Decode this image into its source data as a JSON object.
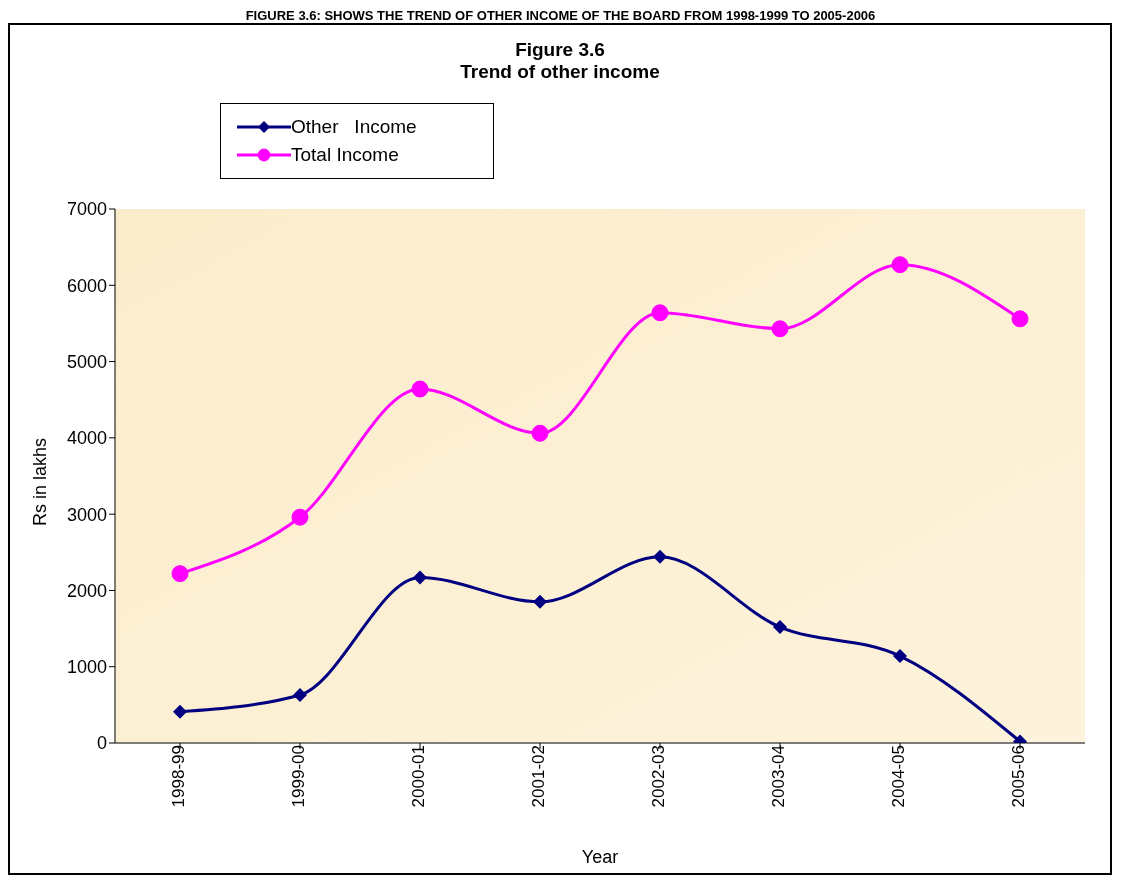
{
  "chart_data": {
    "type": "line",
    "title": "Figure 3.6\nTrend of other income",
    "annotations": [
      "FIGURE 3.6: SHOWS THE TREND OF OTHER INCOME OF THE BOARD FROM 1998-1999 TO 2005-2006"
    ],
    "xlabel": "Year",
    "ylabel": "Rs in lakhs",
    "categories": [
      "1998-99",
      "1999-00",
      "2000-01",
      "2001-02",
      "2002-03",
      "2003-04",
      "2004-05",
      "2005-06"
    ],
    "series": [
      {
        "name": "Other   Income",
        "color": "#000080",
        "marker": "diamond",
        "values": [
          410,
          630,
          2170,
          1850,
          2440,
          1520,
          1140,
          20
        ]
      },
      {
        "name": "Total Income",
        "color": "#ff00ff",
        "marker": "circle",
        "values": [
          2220,
          2960,
          4640,
          4060,
          5640,
          5430,
          6270,
          5560
        ]
      }
    ],
    "ylim": [
      0,
      7000
    ],
    "yticks": [
      0,
      1000,
      2000,
      3000,
      4000,
      5000,
      6000,
      7000
    ],
    "grid": false,
    "legend": "top left"
  }
}
